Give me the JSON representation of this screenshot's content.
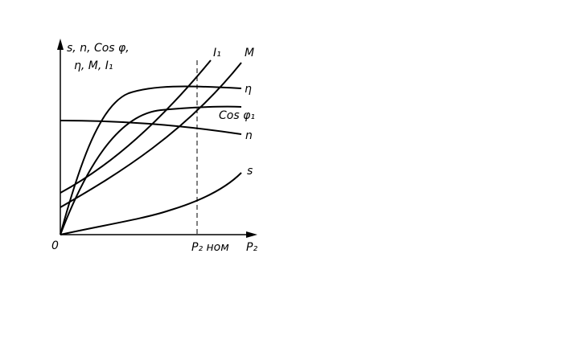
{
  "axes": {
    "y_label": [
      "s, n, Cos φ,",
      "η, M, I₁"
    ],
    "origin": "0",
    "x_label": "P₂",
    "x_nominal": "P₂ ном"
  },
  "curves": {
    "I1": "I₁",
    "M": "M",
    "eta": "η",
    "cos": "Cos φ₁",
    "n": "n",
    "s": "s"
  }
}
